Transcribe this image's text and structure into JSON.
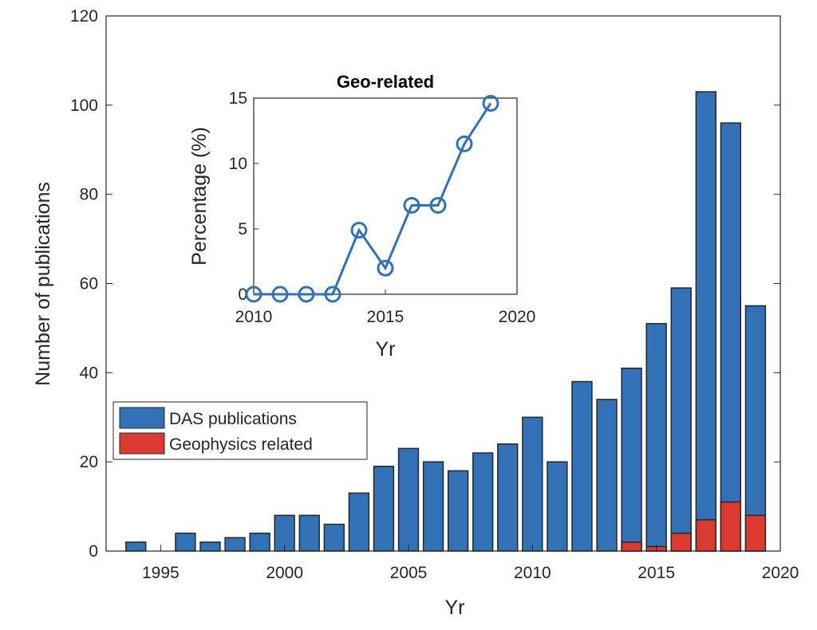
{
  "chart_data": [
    {
      "type": "bar",
      "stacked_overlay": true,
      "x": [
        1994,
        1995,
        1996,
        1997,
        1998,
        1999,
        2000,
        2001,
        2002,
        2003,
        2004,
        2005,
        2006,
        2007,
        2008,
        2009,
        2010,
        2011,
        2012,
        2013,
        2014,
        2015,
        2016,
        2017,
        2018,
        2019
      ],
      "series": [
        {
          "name": "DAS publications",
          "color": "#3371b6",
          "values": [
            2,
            0,
            4,
            2,
            3,
            4,
            8,
            8,
            6,
            13,
            19,
            23,
            20,
            18,
            22,
            24,
            30,
            20,
            38,
            34,
            41,
            51,
            59,
            103,
            96,
            55
          ]
        },
        {
          "name": "Geophysics related",
          "color": "#dc3a30",
          "values": [
            0,
            0,
            0,
            0,
            0,
            0,
            0,
            0,
            0,
            0,
            0,
            0,
            0,
            0,
            0,
            0,
            0,
            0,
            0,
            0,
            2,
            1,
            4,
            7,
            11,
            8
          ]
        }
      ],
      "xlabel": "Yr",
      "ylabel": "Number of publications",
      "xlim": [
        1992.8,
        2020
      ],
      "ylim": [
        0,
        120
      ],
      "xticks": [
        1995,
        2000,
        2005,
        2010,
        2015,
        2020
      ],
      "yticks": [
        0,
        20,
        40,
        60,
        80,
        100,
        120
      ],
      "legend": "lower-left",
      "grid": false
    },
    {
      "type": "line",
      "title": "Geo-related",
      "x": [
        2010,
        2011,
        2012,
        2013,
        2014,
        2015,
        2016,
        2017,
        2018,
        2019
      ],
      "y": [
        0,
        0,
        0,
        0,
        4.9,
        2,
        6.8,
        6.8,
        11.5,
        14.6
      ],
      "color": "#3371b6",
      "marker": "circle",
      "xlabel": "Yr",
      "ylabel": "Percentage (%)",
      "xlim": [
        2010,
        2020
      ],
      "ylim": [
        0,
        15
      ],
      "xticks": [
        2010,
        2015,
        2020
      ],
      "yticks": [
        0,
        5,
        10,
        15
      ],
      "grid": false
    }
  ]
}
